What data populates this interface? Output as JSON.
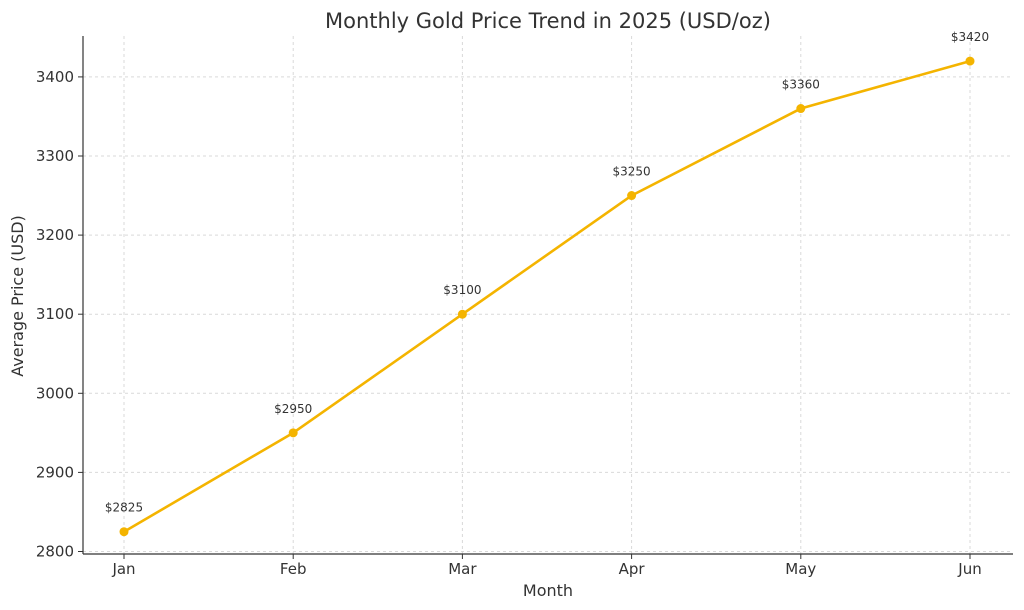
{
  "chart_data": {
    "type": "line",
    "title": "Monthly Gold Price Trend in 2025 (USD/oz)",
    "xlabel": "Month",
    "ylabel": "Average Price (USD)",
    "categories": [
      "Jan",
      "Feb",
      "Mar",
      "Apr",
      "May",
      "Jun"
    ],
    "series": [
      {
        "values": [
          2825,
          2950,
          3100,
          3250,
          3360,
          3420
        ],
        "color": "#F4B400"
      }
    ],
    "data_labels": [
      "$2825",
      "$2950",
      "$3100",
      "$3250",
      "$3360",
      "$3420"
    ],
    "ylim": [
      2800,
      3450
    ],
    "yticks": [
      2800,
      2900,
      3000,
      3100,
      3200,
      3300,
      3400
    ],
    "grid": true,
    "marker": "circle"
  }
}
